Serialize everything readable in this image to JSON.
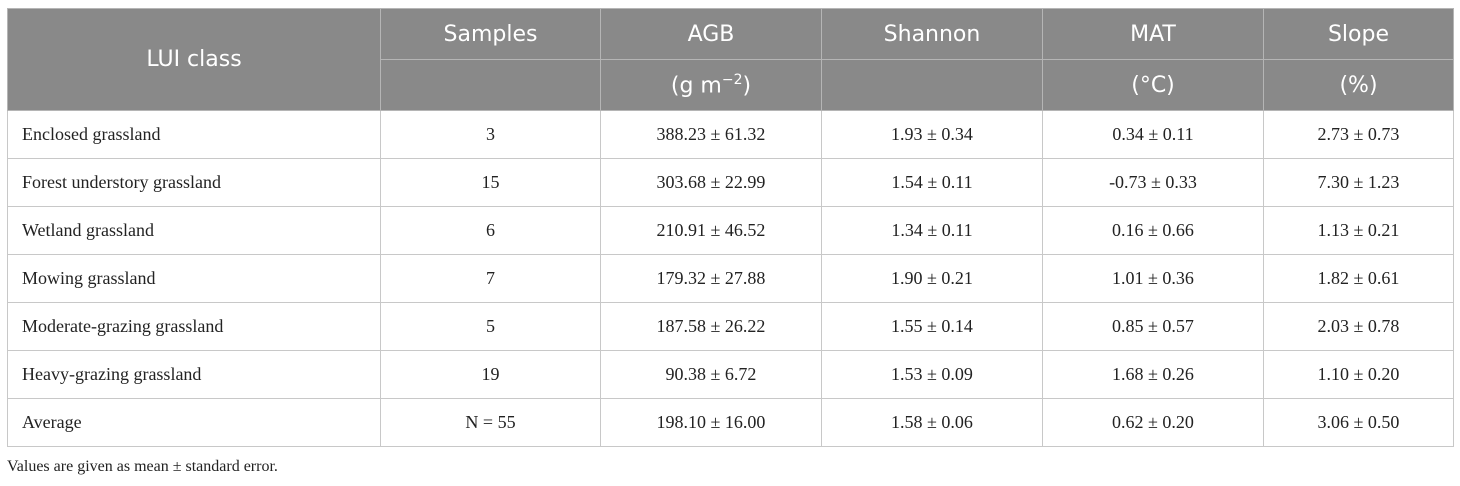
{
  "table": {
    "columns": [
      {
        "label": "LUI class"
      },
      {
        "label": "Samples"
      },
      {
        "label": "AGB",
        "unit": {
          "open": "(g m",
          "sup": "−2",
          "close": ")"
        }
      },
      {
        "label": "Shannon"
      },
      {
        "label": "MAT",
        "unit": {
          "open": "(°C)"
        }
      },
      {
        "label": "Slope",
        "unit": {
          "open": "(%)"
        }
      }
    ],
    "rows": [
      [
        "Enclosed grassland",
        "3",
        "388.23 ± 61.32",
        "1.93 ± 0.34",
        "0.34 ± 0.11",
        "2.73 ± 0.73"
      ],
      [
        "Forest understory grassland",
        "15",
        "303.68 ± 22.99",
        "1.54 ± 0.11",
        "-0.73 ± 0.33",
        "7.30 ± 1.23"
      ],
      [
        "Wetland grassland",
        "6",
        "210.91 ± 46.52",
        "1.34 ± 0.11",
        "0.16 ± 0.66",
        "1.13 ± 0.21"
      ],
      [
        "Mowing grassland",
        "7",
        "179.32 ± 27.88",
        "1.90 ± 0.21",
        "1.01 ± 0.36",
        "1.82 ± 0.61"
      ],
      [
        "Moderate-grazing grassland",
        "5",
        "187.58 ± 26.22",
        "1.55 ± 0.14",
        "0.85 ± 0.57",
        "2.03 ± 0.78"
      ],
      [
        "Heavy-grazing grassland",
        "19",
        "90.38 ± 6.72",
        "1.53 ± 0.09",
        "1.68 ± 0.26",
        "1.10 ± 0.20"
      ],
      [
        "Average",
        "N = 55",
        "198.10 ± 16.00",
        "1.58 ± 0.06",
        "0.62 ± 0.20",
        "3.06 ± 0.50"
      ]
    ]
  },
  "footnote": "Values are given as mean ± standard error."
}
